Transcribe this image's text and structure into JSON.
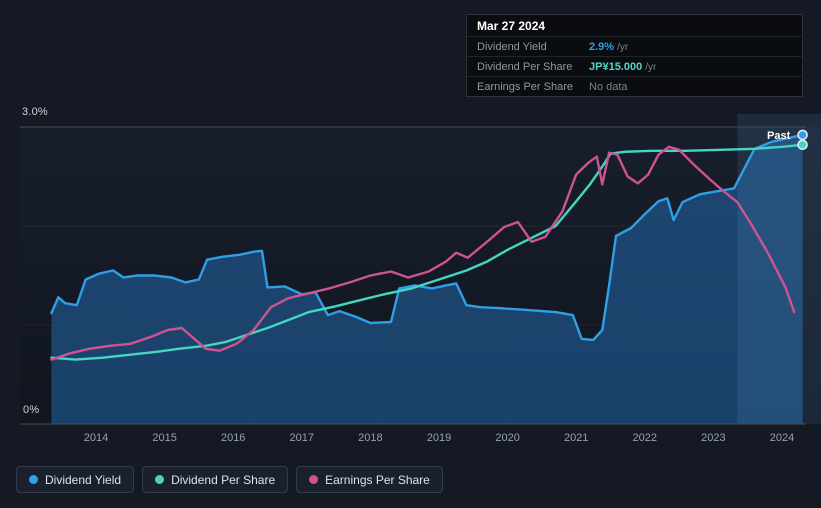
{
  "axis": {
    "y_top_label": "3.0%",
    "y_bottom_label": "0%"
  },
  "past_label": "Past",
  "tooltip": {
    "date": "Mar 27 2024",
    "rows": [
      {
        "label": "Dividend Yield",
        "value": "2.9%",
        "suffix": "/yr",
        "value_color": "#2f9fe8"
      },
      {
        "label": "Dividend Per Share",
        "value": "JP¥15.000",
        "suffix": "/yr",
        "value_color": "#4fd8c4"
      },
      {
        "label": "Earnings Per Share",
        "value": "No data",
        "suffix": "",
        "value_color": "#79838d"
      }
    ]
  },
  "legend": [
    {
      "label": "Dividend Yield",
      "color": "#2f9fe8"
    },
    {
      "label": "Dividend Per Share",
      "color": "#45d6c2"
    },
    {
      "label": "Earnings Per Share",
      "color": "#cf5291"
    }
  ],
  "chart_data": {
    "type": "line",
    "title": "Dividend history chart (Dividend Yield, Dividend Per Share, Earnings Per Share)",
    "x_range": [
      2013.3,
      2024.35
    ],
    "x_label_ticks": [
      2014,
      2015,
      2016,
      2017,
      2018,
      2019,
      2020,
      2021,
      2022,
      2023,
      2024
    ],
    "y_axis": {
      "min": 0,
      "max": 3.0,
      "unit": "%",
      "top_label": "3.0%",
      "bottom_label": "0%"
    },
    "faint_gridlines": [
      1,
      2
    ],
    "past_region_start_x": 2023.35,
    "note": "Dividend Per Share and Earnings Per Share are drawn on an unlabeled secondary scale; their point values below are positions mapped onto the visible 0-3.0% axis. Cursor values at Mar 27 2024: Dividend Yield 2.9%/yr, Dividend Per Share JP¥15.000/yr, Earnings Per Share no data.",
    "series": [
      {
        "name": "Dividend Yield",
        "color": "#2f9fe8",
        "unit": "%",
        "area": true,
        "end_marker": true,
        "points": [
          [
            2013.35,
            1.12
          ],
          [
            2013.45,
            1.28
          ],
          [
            2013.55,
            1.22
          ],
          [
            2013.72,
            1.2
          ],
          [
            2013.85,
            1.46
          ],
          [
            2014.05,
            1.52
          ],
          [
            2014.25,
            1.55
          ],
          [
            2014.4,
            1.48
          ],
          [
            2014.6,
            1.5
          ],
          [
            2014.85,
            1.5
          ],
          [
            2015.1,
            1.48
          ],
          [
            2015.3,
            1.43
          ],
          [
            2015.5,
            1.46
          ],
          [
            2015.62,
            1.66
          ],
          [
            2015.85,
            1.69
          ],
          [
            2016.1,
            1.71
          ],
          [
            2016.3,
            1.74
          ],
          [
            2016.42,
            1.75
          ],
          [
            2016.5,
            1.38
          ],
          [
            2016.75,
            1.39
          ],
          [
            2017.0,
            1.31
          ],
          [
            2017.2,
            1.33
          ],
          [
            2017.38,
            1.1
          ],
          [
            2017.55,
            1.14
          ],
          [
            2017.8,
            1.08
          ],
          [
            2018.0,
            1.02
          ],
          [
            2018.3,
            1.03
          ],
          [
            2018.42,
            1.37
          ],
          [
            2018.65,
            1.4
          ],
          [
            2018.9,
            1.37
          ],
          [
            2019.1,
            1.4
          ],
          [
            2019.25,
            1.42
          ],
          [
            2019.4,
            1.2
          ],
          [
            2019.6,
            1.18
          ],
          [
            2019.9,
            1.17
          ],
          [
            2020.3,
            1.15
          ],
          [
            2020.7,
            1.13
          ],
          [
            2020.95,
            1.1
          ],
          [
            2021.08,
            0.86
          ],
          [
            2021.25,
            0.85
          ],
          [
            2021.38,
            0.95
          ],
          [
            2021.48,
            1.4
          ],
          [
            2021.58,
            1.9
          ],
          [
            2021.8,
            1.98
          ],
          [
            2022.0,
            2.12
          ],
          [
            2022.2,
            2.25
          ],
          [
            2022.33,
            2.28
          ],
          [
            2022.42,
            2.06
          ],
          [
            2022.55,
            2.24
          ],
          [
            2022.8,
            2.32
          ],
          [
            2023.05,
            2.35
          ],
          [
            2023.3,
            2.38
          ],
          [
            2023.45,
            2.58
          ],
          [
            2023.6,
            2.78
          ],
          [
            2023.85,
            2.85
          ],
          [
            2024.1,
            2.89
          ],
          [
            2024.3,
            2.92
          ]
        ]
      },
      {
        "name": "Dividend Per Share",
        "color": "#45d6c2",
        "unit": "axis-relative",
        "area": false,
        "end_marker": true,
        "points": [
          [
            2013.35,
            0.67
          ],
          [
            2013.7,
            0.65
          ],
          [
            2014.1,
            0.67
          ],
          [
            2014.5,
            0.7
          ],
          [
            2014.9,
            0.73
          ],
          [
            2015.2,
            0.76
          ],
          [
            2015.6,
            0.79
          ],
          [
            2015.9,
            0.83
          ],
          [
            2016.2,
            0.9
          ],
          [
            2016.5,
            0.97
          ],
          [
            2016.8,
            1.05
          ],
          [
            2017.1,
            1.13
          ],
          [
            2017.5,
            1.19
          ],
          [
            2017.9,
            1.26
          ],
          [
            2018.2,
            1.31
          ],
          [
            2018.6,
            1.37
          ],
          [
            2019.0,
            1.46
          ],
          [
            2019.4,
            1.55
          ],
          [
            2019.7,
            1.64
          ],
          [
            2020.0,
            1.76
          ],
          [
            2020.35,
            1.88
          ],
          [
            2020.7,
            2.0
          ],
          [
            2021.0,
            2.25
          ],
          [
            2021.2,
            2.42
          ],
          [
            2021.38,
            2.6
          ],
          [
            2021.5,
            2.73
          ],
          [
            2021.7,
            2.75
          ],
          [
            2022.1,
            2.76
          ],
          [
            2022.6,
            2.76
          ],
          [
            2023.1,
            2.77
          ],
          [
            2023.6,
            2.78
          ],
          [
            2024.0,
            2.8
          ],
          [
            2024.3,
            2.82
          ]
        ]
      },
      {
        "name": "Earnings Per Share",
        "color": "#cf5291",
        "unit": "axis-relative",
        "area": false,
        "end_marker": false,
        "points": [
          [
            2013.35,
            0.65
          ],
          [
            2013.6,
            0.71
          ],
          [
            2013.9,
            0.76
          ],
          [
            2014.2,
            0.79
          ],
          [
            2014.5,
            0.81
          ],
          [
            2014.8,
            0.88
          ],
          [
            2015.05,
            0.95
          ],
          [
            2015.25,
            0.97
          ],
          [
            2015.4,
            0.88
          ],
          [
            2015.6,
            0.76
          ],
          [
            2015.8,
            0.74
          ],
          [
            2016.05,
            0.81
          ],
          [
            2016.3,
            0.95
          ],
          [
            2016.55,
            1.18
          ],
          [
            2016.8,
            1.27
          ],
          [
            2017.1,
            1.32
          ],
          [
            2017.4,
            1.37
          ],
          [
            2017.7,
            1.43
          ],
          [
            2018.0,
            1.5
          ],
          [
            2018.3,
            1.54
          ],
          [
            2018.55,
            1.48
          ],
          [
            2018.85,
            1.54
          ],
          [
            2019.1,
            1.64
          ],
          [
            2019.25,
            1.73
          ],
          [
            2019.42,
            1.68
          ],
          [
            2019.7,
            1.84
          ],
          [
            2019.95,
            1.99
          ],
          [
            2020.15,
            2.04
          ],
          [
            2020.35,
            1.84
          ],
          [
            2020.55,
            1.89
          ],
          [
            2020.8,
            2.15
          ],
          [
            2021.0,
            2.52
          ],
          [
            2021.18,
            2.64
          ],
          [
            2021.3,
            2.7
          ],
          [
            2021.38,
            2.42
          ],
          [
            2021.48,
            2.74
          ],
          [
            2021.6,
            2.72
          ],
          [
            2021.75,
            2.5
          ],
          [
            2021.9,
            2.43
          ],
          [
            2022.05,
            2.52
          ],
          [
            2022.2,
            2.72
          ],
          [
            2022.35,
            2.8
          ],
          [
            2022.5,
            2.77
          ],
          [
            2022.7,
            2.63
          ],
          [
            2022.95,
            2.47
          ],
          [
            2023.15,
            2.35
          ],
          [
            2023.35,
            2.24
          ],
          [
            2023.55,
            2.02
          ],
          [
            2023.8,
            1.72
          ],
          [
            2024.05,
            1.38
          ],
          [
            2024.18,
            1.13
          ]
        ]
      }
    ]
  }
}
